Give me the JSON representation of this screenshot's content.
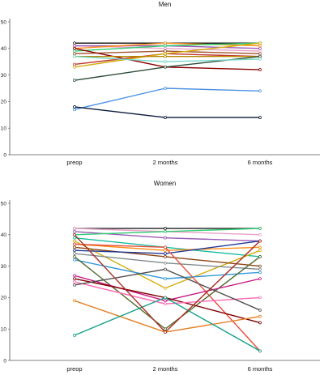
{
  "chart_data": [
    {
      "type": "line",
      "title": "Men",
      "categories": [
        "preop",
        "2 months",
        "6 months"
      ],
      "ylim": [
        0,
        50
      ],
      "yticks": [
        0,
        10,
        20,
        30,
        40,
        50
      ],
      "grid": false,
      "series": [
        {
          "color": "#1f1f1f",
          "values": [
            42,
            42,
            42
          ]
        },
        {
          "color": "#e8a2c8",
          "values": [
            41,
            40,
            39
          ]
        },
        {
          "color": "#9b59b6",
          "values": [
            41,
            41,
            40
          ]
        },
        {
          "color": "#ff8c1a",
          "values": [
            40,
            42,
            41
          ]
        },
        {
          "color": "#2ecc71",
          "values": [
            39,
            41,
            42
          ]
        },
        {
          "color": "#a0522d",
          "values": [
            38,
            39,
            38
          ]
        },
        {
          "color": "#8b0000",
          "values": [
            40,
            33,
            32
          ]
        },
        {
          "color": "#c0392b",
          "values": [
            34,
            38,
            37
          ]
        },
        {
          "color": "#d4ac0d",
          "values": [
            33,
            38,
            42
          ]
        },
        {
          "color": "#b38600",
          "values": [
            37,
            37,
            37
          ]
        },
        {
          "color": "#2e4d3a",
          "values": [
            28,
            33,
            37
          ]
        },
        {
          "color": "#76d7c4",
          "values": [
            37,
            35,
            36
          ]
        },
        {
          "color": "#4a90e2",
          "values": [
            17,
            25,
            24
          ]
        },
        {
          "color": "#0b1a3a",
          "values": [
            18,
            14,
            14
          ]
        }
      ]
    },
    {
      "type": "line",
      "title": "Women",
      "categories": [
        "preop",
        "2 months",
        "6 months"
      ],
      "ylim": [
        0,
        50
      ],
      "yticks": [
        0,
        10,
        20,
        30,
        40,
        50
      ],
      "grid": false,
      "series": [
        {
          "color": "#1f1f1f",
          "values": [
            42,
            42,
            42
          ]
        },
        {
          "color": "#e8a2c8",
          "values": [
            42,
            41,
            40
          ]
        },
        {
          "color": "#9b59b6",
          "values": [
            41,
            39,
            38
          ]
        },
        {
          "color": "#2ecc71",
          "values": [
            40,
            41,
            42
          ]
        },
        {
          "color": "#1abc9c",
          "values": [
            39,
            36,
            33
          ]
        },
        {
          "color": "#d4ac0d",
          "values": [
            38,
            23,
            35
          ]
        },
        {
          "color": "#ff8c1a",
          "values": [
            37,
            35,
            36
          ]
        },
        {
          "color": "#8b4513",
          "values": [
            36,
            33,
            30
          ]
        },
        {
          "color": "#1f3a93",
          "values": [
            35,
            34,
            38
          ]
        },
        {
          "color": "#7f8c8d",
          "values": [
            34,
            31,
            29
          ]
        },
        {
          "color": "#3498db",
          "values": [
            32,
            26,
            28
          ]
        },
        {
          "color": "#e74c3c",
          "values": [
            37,
            36,
            3
          ]
        },
        {
          "color": "#556b2f",
          "values": [
            33,
            10,
            33
          ]
        },
        {
          "color": "#c71585",
          "values": [
            27,
            19,
            26
          ]
        },
        {
          "color": "#800000",
          "values": [
            26,
            20,
            12
          ]
        },
        {
          "color": "#ff69b4",
          "values": [
            25,
            18,
            20
          ]
        },
        {
          "color": "#4d4d4d",
          "values": [
            24,
            29,
            16
          ]
        },
        {
          "color": "#e67e22",
          "values": [
            19,
            9,
            14
          ]
        },
        {
          "color": "#16a085",
          "values": [
            8,
            20,
            3
          ]
        },
        {
          "color": "#a93226",
          "values": [
            40,
            9,
            38
          ]
        }
      ]
    }
  ]
}
